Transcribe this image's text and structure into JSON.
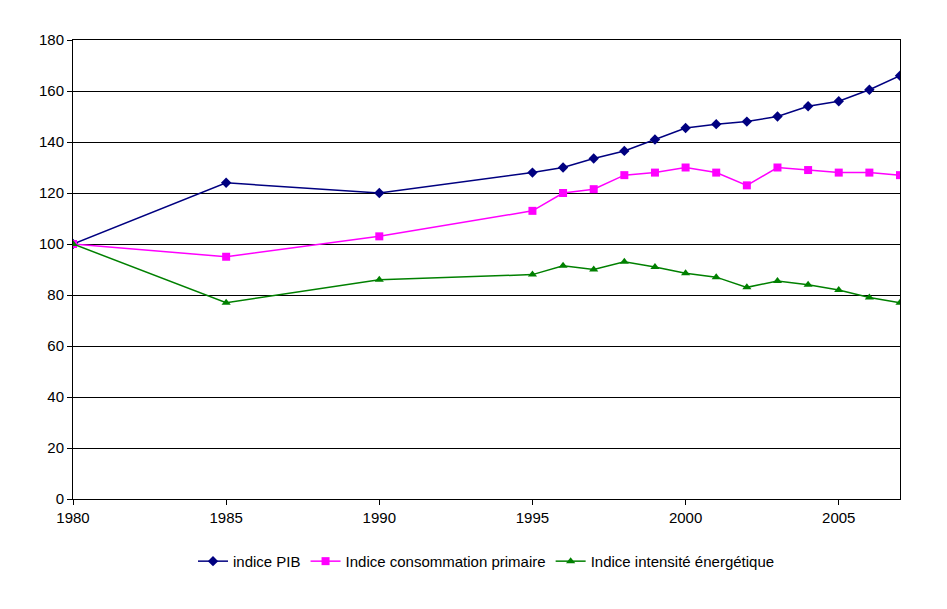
{
  "chart_data": {
    "type": "line",
    "x": [
      1980,
      1985,
      1990,
      1995,
      1996,
      1997,
      1998,
      1999,
      2000,
      2001,
      2002,
      2003,
      2004,
      2005,
      2006,
      2007
    ],
    "series": [
      {
        "name": "indice PIB",
        "color": "#000080",
        "marker": "diamond",
        "line_style": "solid",
        "values": [
          100,
          124,
          120,
          128,
          130,
          133.5,
          136.5,
          141,
          145.5,
          147,
          148,
          150,
          154,
          156,
          160.5,
          166
        ]
      },
      {
        "name": "Indice consommation primaire",
        "color": "#ff00ff",
        "marker": "square",
        "line_style": "solid",
        "values": [
          100,
          95,
          103,
          113,
          120,
          121.5,
          127,
          128,
          130,
          128,
          123,
          130,
          129,
          128,
          128,
          127
        ]
      },
      {
        "name": "Indice intensité énergétique",
        "color": "#008000",
        "marker": "triangle-up",
        "line_style": "solid",
        "values": [
          100,
          77,
          86,
          88,
          91.5,
          90,
          93,
          91,
          88.5,
          87,
          83,
          85.5,
          84,
          82,
          79,
          77
        ]
      }
    ],
    "xlim": [
      1980,
      2007
    ],
    "xticks": [
      1980,
      1985,
      1990,
      1995,
      2000,
      2005
    ],
    "ylim": [
      0,
      180
    ],
    "yticks": [
      0,
      20,
      40,
      60,
      80,
      100,
      120,
      140,
      160,
      180
    ],
    "grid": true,
    "legend": "bottom"
  }
}
